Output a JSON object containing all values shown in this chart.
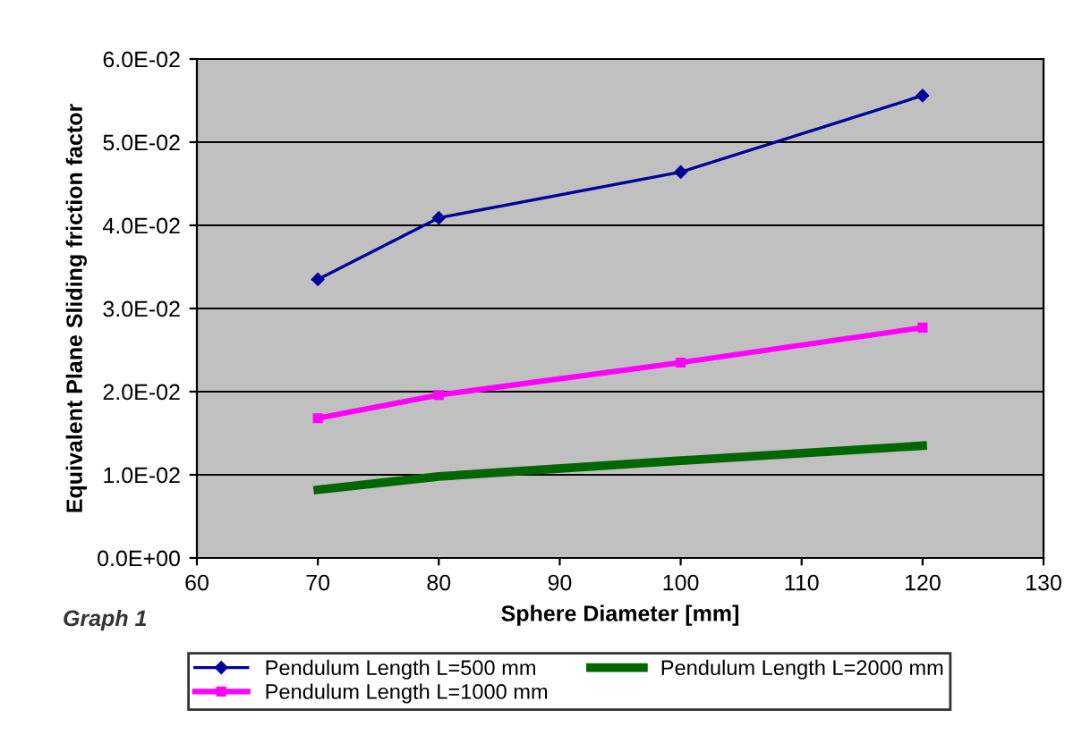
{
  "chart_data": {
    "type": "line",
    "xlabel": "Sphere Diameter [mm]",
    "ylabel": "Equivalent Plane Sliding friction factor",
    "annotations": [
      "Graph 1"
    ],
    "xlim": [
      60,
      130
    ],
    "xticks": [
      60,
      70,
      80,
      90,
      100,
      110,
      120,
      130
    ],
    "ylim": [
      0,
      0.06
    ],
    "yticks": [
      {
        "value": 0,
        "label": "0.0E+00"
      },
      {
        "value": 0.01,
        "label": "1.0E-02"
      },
      {
        "value": 0.02,
        "label": "2.0E-02"
      },
      {
        "value": 0.03,
        "label": "3.0E-02"
      },
      {
        "value": 0.04,
        "label": "4.0E-02"
      },
      {
        "value": 0.05,
        "label": "5.0E-02"
      },
      {
        "value": 0.06,
        "label": "6.0E-02"
      }
    ],
    "grid": "y",
    "legend": "bottom",
    "x": [
      70,
      80,
      100,
      120
    ],
    "series": [
      {
        "name": "Pendulum Length L=500 mm",
        "color": "#000099",
        "marker": "diamond",
        "values": [
          0.0335,
          0.0409,
          0.0464,
          0.0556
        ]
      },
      {
        "name": "Pendulum Length L=1000 mm",
        "color": "#ff00ff",
        "marker": "square",
        "values": [
          0.0168,
          0.0196,
          0.0235,
          0.0277
        ]
      },
      {
        "name": "Pendulum Length L=2000 mm",
        "color": "#006600",
        "marker": "none",
        "values": [
          0.0082,
          0.0098,
          0.0117,
          0.0135
        ]
      }
    ]
  }
}
